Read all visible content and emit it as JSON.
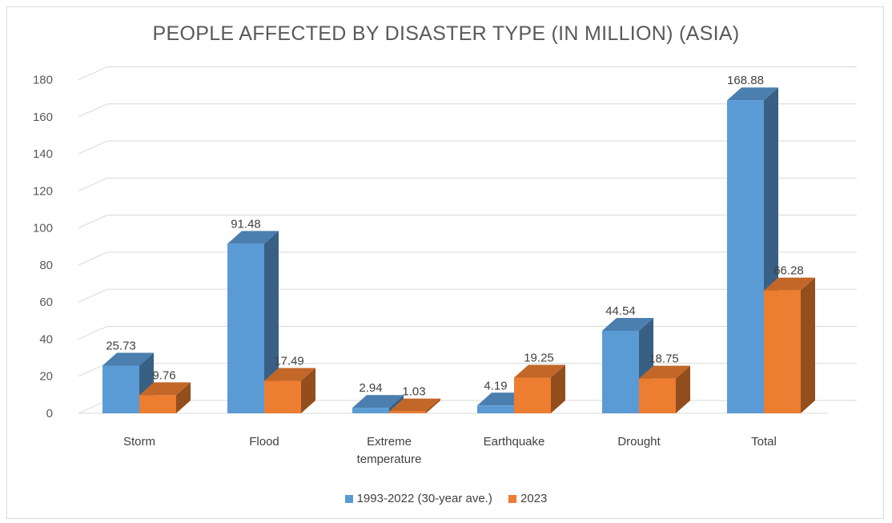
{
  "chart_data": {
    "type": "bar",
    "title": "PEOPLE AFFECTED BY DISASTER TYPE (IN MILLION) (ASIA)",
    "xlabel": "",
    "ylabel": "",
    "ylim": [
      0,
      180
    ],
    "yticks": [
      0,
      20,
      40,
      60,
      80,
      100,
      120,
      140,
      160,
      180
    ],
    "grid": true,
    "legend_position": "bottom",
    "categories": [
      [
        "Storm"
      ],
      [
        "Flood"
      ],
      [
        "Extreme",
        "temperature"
      ],
      [
        "Earthquake"
      ],
      [
        "Drought"
      ],
      [
        "Total"
      ]
    ],
    "series": [
      {
        "name": "1993-2022 (30-year ave.)",
        "color": "#5b9bd5",
        "values": [
          25.73,
          91.48,
          2.94,
          4.19,
          44.54,
          168.88
        ],
        "labels": [
          "25.73",
          "91.48",
          "2.94",
          "4.19",
          "44.54",
          "168.88"
        ]
      },
      {
        "name": "2023",
        "color": "#ed7d31",
        "values": [
          9.76,
          17.49,
          1.03,
          19.25,
          18.75,
          66.28
        ],
        "labels": [
          "9.76",
          "17.49",
          "1.03",
          "19.25",
          "18.75",
          "66.28"
        ]
      }
    ]
  }
}
